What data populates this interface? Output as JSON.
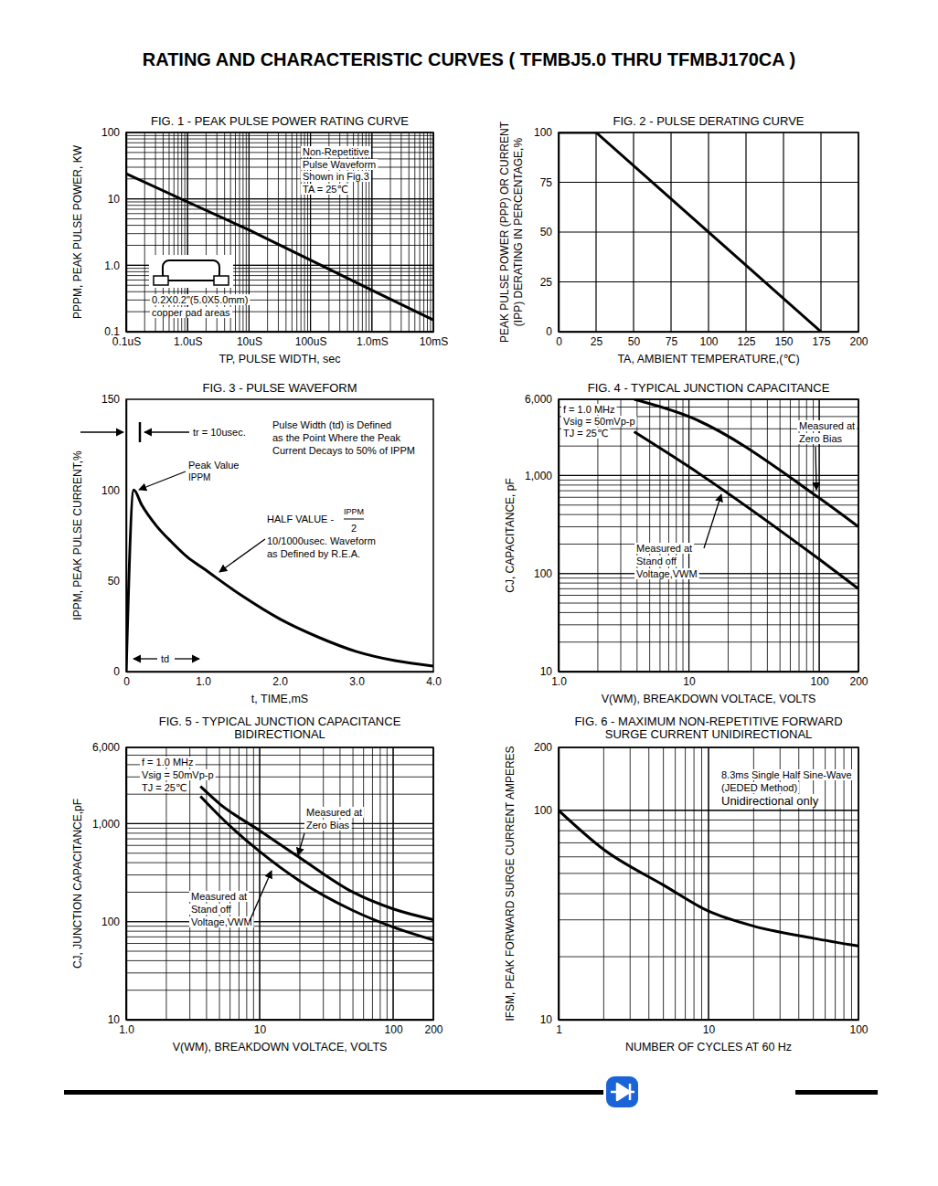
{
  "header": {
    "title": "RATING AND CHARACTERISTIC CURVES ( TFMBJ5.0 THRU TFMBJ170CA )"
  },
  "chart_data": [
    {
      "type": "line",
      "title": "FIG. 1 - PEAK PULSE POWER RATING CURVE",
      "xlabel": "TP, PULSE WIDTH, sec",
      "ylabel": [
        "PPPM, PEAK PULSE POWER, KW"
      ],
      "log": true,
      "grid": true,
      "x": [
        1e-07,
        1e-06,
        1e-05,
        0.0001,
        0.001,
        0.01
      ],
      "series": [
        {
          "color": "#000000",
          "values": [
            24,
            9,
            3.4,
            1.2,
            0.42,
            0.15
          ]
        }
      ],
      "xlim": [
        1e-07,
        0.01
      ],
      "xticks": [
        {
          "value": 1e-07,
          "label": "0.1uS"
        },
        {
          "value": 1e-06,
          "label": "1.0uS"
        },
        {
          "value": 1e-05,
          "label": "10uS"
        },
        {
          "value": 0.0001,
          "label": "100uS"
        },
        {
          "value": 0.001,
          "label": "1.0mS"
        },
        {
          "value": 0.01,
          "label": "10mS"
        }
      ],
      "ylim": [
        0.1,
        100
      ],
      "yticks": [
        0.1,
        {
          "value": 1,
          "label": "1.0"
        },
        10,
        100
      ],
      "annotations": [
        "Non-Repetitive",
        "Pulse Waveform",
        "Shown in Fig.3",
        "TA = 25℃",
        "0.2X0.2\"(5.0X5.0mm)",
        "copper pad areas"
      ]
    },
    {
      "type": "line",
      "title": "FIG. 2 - PULSE DERATING CURVE",
      "xlabel": "TA, AMBIENT TEMPERATURE,(℃)",
      "ylabel": [
        "PEAK PULSE POWER (PPP) OR CURRENT",
        "(IPP) DERATING IN PERCENTAGE,%"
      ],
      "grid": true,
      "x": [
        0,
        25,
        175
      ],
      "series": [
        {
          "color": "#000000",
          "values": [
            100,
            100,
            0
          ]
        }
      ],
      "xlim": [
        0,
        200
      ],
      "xticks": [
        0,
        25,
        50,
        75,
        100,
        125,
        150,
        175,
        200
      ],
      "ylim": [
        0,
        100
      ],
      "yticks": [
        0,
        25,
        50,
        75,
        100
      ]
    },
    {
      "type": "line",
      "title": "FIG. 3 - PULSE WAVEFORM",
      "xlabel": "t, TIME,mS",
      "ylabel": [
        "IPPM, PEAK PULSE CURRENT,%"
      ],
      "grid": false,
      "x": [
        0,
        0.1,
        0.2,
        0.4,
        0.6,
        0.8,
        1.0,
        1.5,
        2.0,
        2.5,
        3.0,
        3.5,
        4.0
      ],
      "series": [
        {
          "color": "#000000",
          "values": [
            0,
            100,
            92,
            80,
            71,
            63,
            57,
            42,
            29,
            19,
            11,
            6,
            3
          ]
        }
      ],
      "xlim": [
        0,
        4
      ],
      "xticks": [
        0,
        {
          "value": 1,
          "label": "1.0"
        },
        {
          "value": 2,
          "label": "2.0"
        },
        {
          "value": 3,
          "label": "3.0"
        },
        {
          "value": 4,
          "label": "4.0"
        }
      ],
      "ylim": [
        0,
        150
      ],
      "yticks": [
        0,
        50,
        100,
        150
      ],
      "annotations": [
        "tr = 10usec.",
        "Pulse Width (td) is Defined",
        "as the Point Where the Peak",
        "Current Decays to 50% of IPPM",
        "Peak Value",
        "IPPM",
        "HALF VALUE -",
        "IPPM",
        "2",
        "10/1000usec. Waveform",
        "as Defined by R.E.A.",
        "td"
      ]
    },
    {
      "type": "line",
      "title": "FIG. 4 - TYPICAL JUNCTION CAPACITANCE",
      "xlabel": "V(WM), BREAKDOWN VOLTACE, VOLTS",
      "ylabel": [
        "CJ, CAPACITANCE, pF"
      ],
      "log": true,
      "grid": true,
      "x": [
        3.8,
        10,
        100,
        200
      ],
      "series": [
        {
          "color": "#000000",
          "values": [
            6000,
            4000,
            590,
            300
          ]
        },
        {
          "color": "#000000",
          "values": [
            2800,
            1230,
            140,
            70
          ]
        }
      ],
      "xlim": [
        1,
        200
      ],
      "xticks": [
        {
          "value": 1,
          "label": "1.0"
        },
        10,
        100,
        200
      ],
      "ylim": [
        10,
        6000
      ],
      "yticks": [
        10,
        100,
        {
          "value": 1000,
          "label": "1,000"
        },
        {
          "value": 6000,
          "label": "6,000"
        }
      ],
      "annotations": [
        "f = 1.0 MHz",
        "Vsig = 50mVp-p",
        "TJ = 25℃",
        "Measured at",
        "Zero Bias",
        "Measured at",
        "Stand off",
        "Voltage,VWM"
      ]
    },
    {
      "type": "line",
      "title": "FIG. 5 - TYPICAL JUNCTION CAPACITANCE",
      "subtitle": "BIDIRECTIONAL",
      "xlabel": "V(WM), BREAKDOWN VOLTACE, VOLTS",
      "ylabel": [
        "CJ, JUNCTION CAPACITANCE,pF"
      ],
      "log": true,
      "grid": true,
      "x": [
        3.6,
        5,
        10,
        20,
        50,
        100,
        200
      ],
      "series": [
        {
          "color": "#000000",
          "values": [
            2400,
            1600,
            850,
            450,
            200,
            135,
            105
          ]
        },
        {
          "color": "#000000",
          "values": [
            1900,
            1200,
            520,
            260,
            130,
            88,
            65
          ]
        }
      ],
      "xlim": [
        1,
        200
      ],
      "xticks": [
        {
          "value": 1,
          "label": "1.0"
        },
        10,
        100,
        200
      ],
      "ylim": [
        10,
        6000
      ],
      "yticks": [
        10,
        100,
        {
          "value": 1000,
          "label": "1,000"
        },
        {
          "value": 6000,
          "label": "6,000"
        }
      ],
      "annotations": [
        "f = 1.0 MHz",
        "Vsig = 50mVp-p",
        "TJ = 25℃",
        "Measured at",
        "Zero Bias",
        "Measured at",
        "Stand off",
        "Voltage,VWM"
      ]
    },
    {
      "type": "line",
      "title": "FIG. 6 - MAXIMUM NON-REPETITIVE FORWARD",
      "subtitle": "SURGE CURRENT UNIDIRECTIONAL",
      "xlabel": "NUMBER OF CYCLES AT 60 Hz",
      "ylabel": [
        "IFSM, PEAK FORWARD SURGE CURRENT AMPERES"
      ],
      "log": true,
      "grid": true,
      "x": [
        1,
        2,
        5,
        10,
        20,
        50,
        100
      ],
      "series": [
        {
          "color": "#000000",
          "values": [
            100,
            65,
            44,
            33,
            28,
            24.5,
            22.5
          ]
        }
      ],
      "xlim": [
        1,
        100
      ],
      "xticks": [
        1,
        10,
        100
      ],
      "ylim": [
        10,
        200
      ],
      "yticks": [
        10,
        100,
        200
      ],
      "annotations": [
        "8.3ms Single Half Sine-Wave",
        "(JEDED Method)",
        "Unidirectional only"
      ]
    }
  ]
}
